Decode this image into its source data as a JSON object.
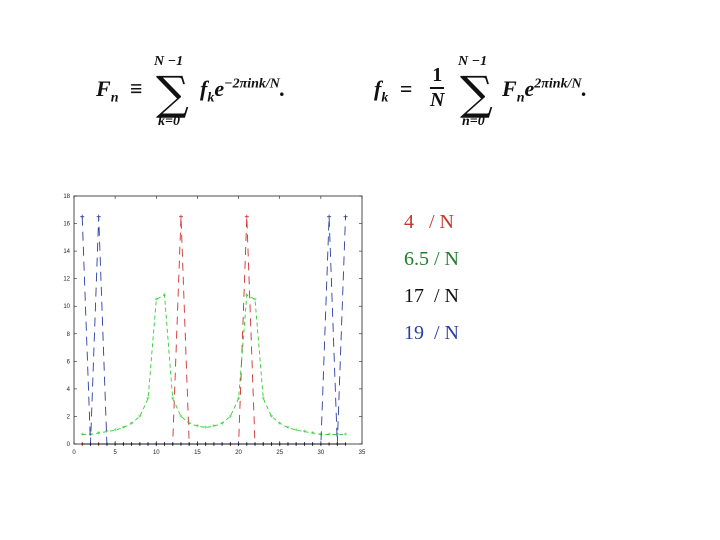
{
  "formulas": {
    "forward": {
      "lhs": "F",
      "lhs_sub": "n",
      "equiv": "≡",
      "sum_upper": "N −1",
      "sum_lower": "k=0",
      "term": "f",
      "term_sub": "k",
      "exp_base": "e",
      "exponent": "−2πink/N",
      "tail": "."
    },
    "inverse": {
      "lhs": "f",
      "lhs_sub": "k",
      "eq": "=",
      "frac_num": "1",
      "frac_den": "N",
      "sum_upper": "N −1",
      "sum_lower": "n=0",
      "term": "F",
      "term_sub": "n",
      "exp_base": "e",
      "exponent": "2πink/N",
      "tail": "."
    }
  },
  "legend": [
    {
      "text": "4   / N",
      "color": "#c0392b"
    },
    {
      "text": "6.5 / N",
      "color": "#1e7d2a"
    },
    {
      "text": "17  / N",
      "color": "#111111"
    },
    {
      "text": "19  / N",
      "color": "#2a3fa0"
    }
  ],
  "chart_data": {
    "type": "line",
    "xlim": [
      0,
      35
    ],
    "ylim": [
      0,
      18
    ],
    "x_ticks": [
      "0",
      "5",
      "10",
      "15",
      "20",
      "25",
      "30",
      "35"
    ],
    "y_ticks": [
      "0",
      "2",
      "4",
      "6",
      "8",
      "10",
      "12",
      "14",
      "16",
      "18"
    ],
    "x": [
      1,
      2,
      3,
      4,
      5,
      6,
      7,
      8,
      9,
      10,
      11,
      12,
      13,
      14,
      15,
      16,
      17,
      18,
      19,
      20,
      21,
      22,
      23,
      24,
      25,
      26,
      27,
      28,
      29,
      30,
      31,
      32,
      33
    ],
    "series": [
      {
        "color": "#d03030",
        "marker": "+",
        "dash": "8,6",
        "values": [
          0,
          0,
          0,
          0,
          0,
          0,
          0,
          0,
          0,
          0,
          0,
          0,
          16.5,
          0,
          0,
          0,
          0,
          0,
          0,
          0,
          16.5,
          0,
          0,
          0,
          0,
          0,
          0,
          0,
          0,
          0,
          0,
          0,
          0
        ]
      },
      {
        "color": "#33cc33",
        "marker": "*",
        "dash": "4,3",
        "values": [
          0.7,
          0.7,
          0.8,
          0.9,
          1.0,
          1.2,
          1.5,
          2.0,
          3.3,
          10.5,
          10.8,
          3.3,
          2.0,
          1.5,
          1.3,
          1.2,
          1.3,
          1.5,
          2.0,
          3.3,
          10.8,
          10.5,
          3.3,
          2.0,
          1.5,
          1.2,
          1.0,
          0.9,
          0.8,
          0.7,
          0.7,
          0.7,
          0.7
        ]
      },
      {
        "color": "#2a3fa0",
        "marker": "+",
        "dash": "9,6",
        "values": [
          16.5,
          0,
          16.5,
          0,
          0,
          0,
          0,
          0,
          0,
          0,
          0,
          0,
          0,
          0,
          0,
          0,
          0,
          0,
          0,
          0,
          0,
          0,
          0,
          0,
          0,
          0,
          0,
          0,
          0,
          0,
          16.5,
          0,
          16.5
        ]
      },
      {
        "color": "#111111",
        "marker": ".",
        "dash": "",
        "values": [
          0,
          0,
          0,
          0,
          0,
          0,
          0,
          0,
          0,
          0,
          0,
          0,
          0,
          0,
          0,
          0,
          0,
          0,
          0,
          0,
          0,
          0,
          0,
          0,
          0,
          0,
          0,
          0,
          0,
          0,
          0,
          0,
          0
        ]
      }
    ]
  }
}
